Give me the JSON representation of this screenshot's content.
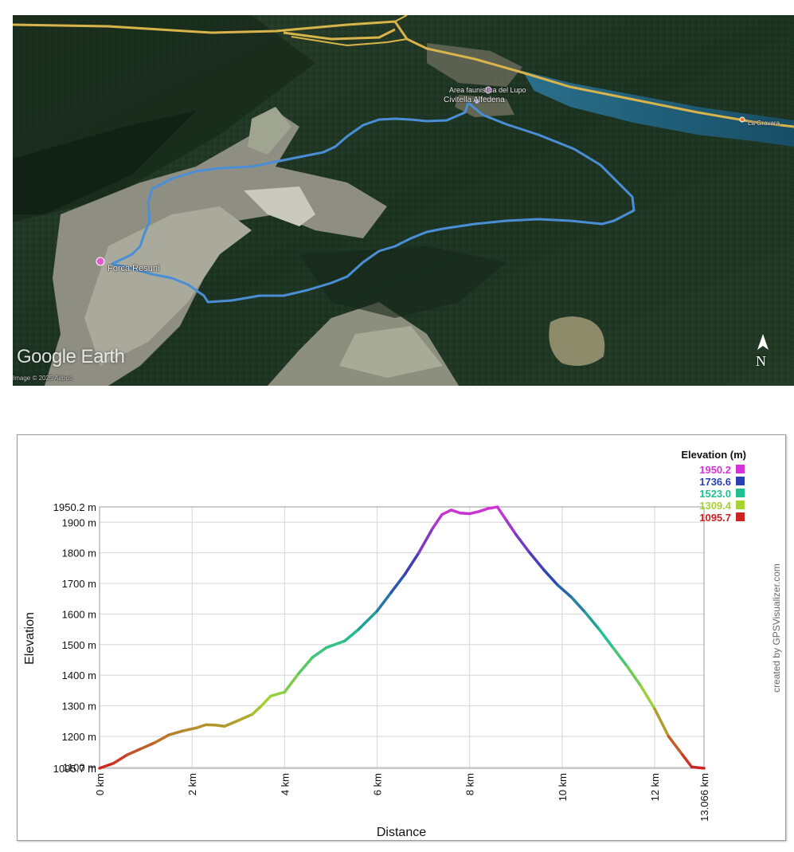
{
  "map": {
    "logo": "Google Earth",
    "credit": "Image © 2025 Airbus",
    "north_label": "N",
    "places": {
      "start": "Civitella Alfedena",
      "area": "Area faunistica del Lupo",
      "summit": "Forca Resuni",
      "village": "La Gravara"
    },
    "colors": {
      "track": "#4a8fd6",
      "road": "#d9b44a",
      "lake": "#1f5e78",
      "forest": "#1f3a26",
      "summit_marker": "#e05ad0"
    }
  },
  "chart_data": {
    "type": "line",
    "xlabel": "Distance",
    "ylabel": "Elevation",
    "x_ticks": [
      "0 km",
      "2 km",
      "4 km",
      "6 km",
      "8 km",
      "10 km",
      "12 km",
      "13.066 km"
    ],
    "x_tick_values": [
      0,
      2,
      4,
      6,
      8,
      10,
      12,
      13.066
    ],
    "y_ticks": [
      "1095.7 m",
      "1100 m",
      "1200 m",
      "1300 m",
      "1400 m",
      "1500 m",
      "1600 m",
      "1700 m",
      "1800 m",
      "1900 m",
      "1950.2 m"
    ],
    "y_tick_values": [
      1095.7,
      1100,
      1200,
      1300,
      1400,
      1500,
      1600,
      1700,
      1800,
      1900,
      1950.2
    ],
    "xlim": [
      0,
      13.066
    ],
    "ylim": [
      1095.7,
      1950.2
    ],
    "grid": true,
    "legend_title": "Elevation (m)",
    "legend": [
      {
        "label": "1950.2",
        "color": "#d633d6"
      },
      {
        "label": "1736.6",
        "color": "#2b3fb0"
      },
      {
        "label": "1523.0",
        "color": "#22c090"
      },
      {
        "label": "1309.4",
        "color": "#a6d233"
      },
      {
        "label": "1095.7",
        "color": "#cc2222"
      }
    ],
    "credit": "created by GPSVisualizer.com",
    "series": [
      {
        "x": [
          0,
          0.3,
          0.6,
          0.9,
          1.2,
          1.5,
          1.8,
          2.1,
          2.3,
          2.5,
          2.7,
          3.0,
          3.3,
          3.5,
          3.7,
          4.0,
          4.3,
          4.6,
          4.9,
          5.3,
          5.6,
          6.0,
          6.3,
          6.6,
          6.9,
          7.2,
          7.4,
          7.6,
          7.8,
          8.0,
          8.2,
          8.4,
          8.6,
          8.8,
          9.0,
          9.3,
          9.6,
          9.9,
          10.2,
          10.5,
          10.8,
          11.1,
          11.4,
          11.7,
          12.0,
          12.3,
          12.6,
          12.8,
          13.066
        ],
        "y": [
          1096,
          1112,
          1140,
          1160,
          1180,
          1205,
          1218,
          1228,
          1238,
          1237,
          1233,
          1252,
          1272,
          1300,
          1332,
          1345,
          1405,
          1458,
          1490,
          1512,
          1550,
          1610,
          1670,
          1730,
          1800,
          1880,
          1925,
          1940,
          1930,
          1928,
          1935,
          1945,
          1950,
          1905,
          1860,
          1800,
          1745,
          1695,
          1655,
          1605,
          1550,
          1490,
          1430,
          1365,
          1290,
          1200,
          1140,
          1100,
          1096
        ]
      }
    ]
  }
}
